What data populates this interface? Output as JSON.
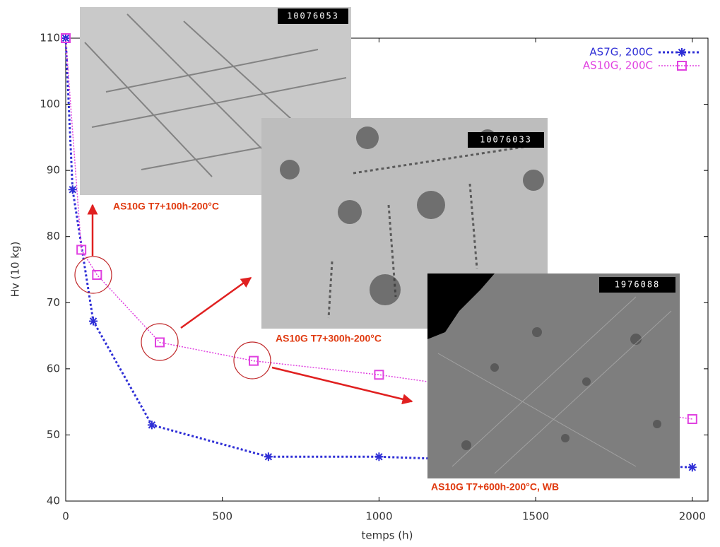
{
  "chart_data": {
    "type": "line",
    "xlabel": "temps (h)",
    "ylabel": "Hv (10 kg)",
    "xlim": [
      0,
      2050
    ],
    "ylim": [
      40,
      110
    ],
    "xticks": [
      0,
      500,
      1000,
      1500,
      2000
    ],
    "yticks": [
      40,
      50,
      60,
      70,
      80,
      90,
      100,
      110
    ],
    "legend": "upper right",
    "series": [
      {
        "name": "AS7G, 200C",
        "color": "#2f2fd6",
        "marker": "star",
        "x": [
          0,
          22,
          88,
          275,
          647,
          1000,
          2000
        ],
        "values": [
          110,
          87.1,
          67.2,
          51.5,
          46.7,
          46.7,
          45.1
        ]
      },
      {
        "name": "AS10G, 200C",
        "color": "#e040e0",
        "marker": "square",
        "x": [
          0,
          50,
          100,
          300,
          600,
          1000,
          2000
        ],
        "values": [
          110,
          78,
          74.2,
          64,
          61.2,
          59.1,
          52.4
        ]
      }
    ],
    "images": [
      {
        "code": "10076053",
        "caption": "AS10G T7+100h-200°C"
      },
      {
        "code": "10076033",
        "caption": "AS10G T7+300h-200°C"
      },
      {
        "code": "1976088",
        "caption": "AS10G T7+600h-200°C, WB"
      }
    ]
  }
}
